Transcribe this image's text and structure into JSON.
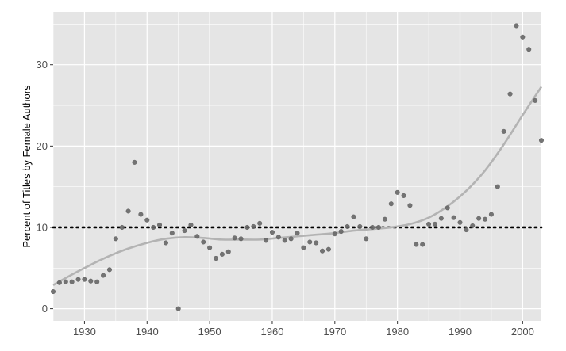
{
  "chart_data": {
    "type": "scatter",
    "title": "",
    "xlabel": "",
    "ylabel": "Percent of Titles by Female Authors",
    "xlim": [
      1925,
      2003
    ],
    "ylim": [
      -1.5,
      36.5
    ],
    "xticks": [
      1930,
      1940,
      1950,
      1960,
      1970,
      1980,
      1990,
      2000
    ],
    "xtick_labels": [
      "1930",
      "1940",
      "1950",
      "1960",
      "1970",
      "1980",
      "1990",
      "2000"
    ],
    "yticks": [
      0,
      10,
      20,
      30
    ],
    "ytick_labels": [
      "0",
      "10",
      "20",
      "30"
    ],
    "grid": true,
    "legend": "none",
    "colors": {
      "panel": "#e5e5e5",
      "grid": "#ffffff",
      "points": "#666666",
      "smooth": "#b3b3b3",
      "reference": "#000000"
    },
    "reference_line": {
      "y": 10,
      "style": "dotted"
    },
    "points": {
      "x": [
        1925,
        1926,
        1927,
        1928,
        1929,
        1930,
        1931,
        1932,
        1933,
        1934,
        1935,
        1936,
        1937,
        1938,
        1939,
        1940,
        1941,
        1942,
        1943,
        1944,
        1945,
        1946,
        1947,
        1948,
        1949,
        1950,
        1951,
        1952,
        1953,
        1954,
        1955,
        1956,
        1957,
        1958,
        1959,
        1960,
        1961,
        1962,
        1963,
        1964,
        1965,
        1966,
        1967,
        1968,
        1969,
        1970,
        1971,
        1972,
        1973,
        1974,
        1975,
        1976,
        1977,
        1978,
        1979,
        1980,
        1981,
        1982,
        1983,
        1984,
        1985,
        1986,
        1987,
        1988,
        1989,
        1990,
        1991,
        1992,
        1993,
        1994,
        1995,
        1996,
        1997,
        1998,
        1999,
        2000,
        2001,
        2002,
        2003
      ],
      "y": [
        2.1,
        3.2,
        3.3,
        3.3,
        3.6,
        3.6,
        3.4,
        3.3,
        4.1,
        4.8,
        8.6,
        10.0,
        12.0,
        18.0,
        11.6,
        10.9,
        10.0,
        10.3,
        8.1,
        9.3,
        0.0,
        9.6,
        10.3,
        8.9,
        8.2,
        7.5,
        6.2,
        6.7,
        7.0,
        8.7,
        8.6,
        10.0,
        10.1,
        10.5,
        8.4,
        9.4,
        8.8,
        8.4,
        8.6,
        9.3,
        7.5,
        8.2,
        8.1,
        7.1,
        7.3,
        9.2,
        9.5,
        10.1,
        11.3,
        10.1,
        8.6,
        10.0,
        10.0,
        11.0,
        12.9,
        14.3,
        13.9,
        12.7,
        7.9,
        7.9,
        10.4,
        10.4,
        11.1,
        12.4,
        11.2,
        10.6,
        9.7,
        10.2,
        11.1,
        11.0,
        11.6,
        15.0,
        21.8,
        26.4,
        34.8,
        33.4,
        31.9,
        25.6,
        20.7
      ]
    },
    "smooth": {
      "x": [
        1925,
        1928,
        1931,
        1934,
        1937,
        1940,
        1943,
        1946,
        1949,
        1952,
        1955,
        1958,
        1961,
        1964,
        1967,
        1970,
        1973,
        1976,
        1979,
        1982,
        1985,
        1988,
        1991,
        1994,
        1997,
        2000,
        2003
      ],
      "y": [
        2.9,
        4.2,
        5.4,
        6.5,
        7.4,
        8.1,
        8.6,
        8.8,
        8.7,
        8.5,
        8.5,
        8.5,
        8.7,
        8.9,
        9.1,
        9.3,
        9.6,
        9.8,
        10.0,
        10.4,
        11.2,
        12.6,
        14.5,
        17.0,
        20.2,
        23.8,
        27.3
      ]
    }
  }
}
